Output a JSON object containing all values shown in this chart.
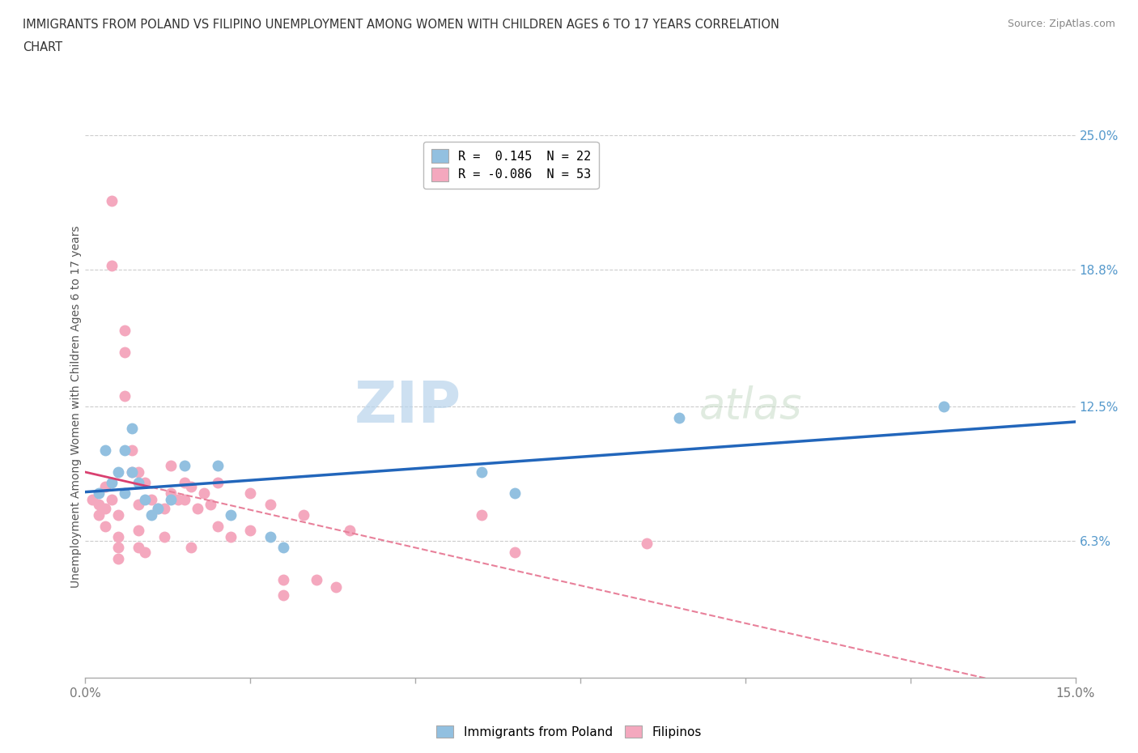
{
  "title_line1": "IMMIGRANTS FROM POLAND VS FILIPINO UNEMPLOYMENT AMONG WOMEN WITH CHILDREN AGES 6 TO 17 YEARS CORRELATION",
  "title_line2": "CHART",
  "source": "Source: ZipAtlas.com",
  "ylabel": "Unemployment Among Women with Children Ages 6 to 17 years",
  "xlim": [
    0.0,
    0.15
  ],
  "ylim": [
    0.0,
    0.25
  ],
  "xtick_positions": [
    0.0,
    0.025,
    0.05,
    0.075,
    0.1,
    0.125,
    0.15
  ],
  "xticklabels": [
    "0.0%",
    "",
    "",
    "",
    "",
    "",
    "15.0%"
  ],
  "ytick_positions": [
    0.0,
    0.063,
    0.125,
    0.188,
    0.25
  ],
  "ytick_labels": [
    "",
    "6.3%",
    "12.5%",
    "18.8%",
    "25.0%"
  ],
  "poland_R": "0.145",
  "poland_N": "22",
  "filipino_R": "-0.086",
  "filipino_N": "53",
  "poland_color": "#92c0e0",
  "filipino_color": "#f4a8be",
  "poland_line_color": "#2266bb",
  "filipino_line_color_solid": "#d94070",
  "filipino_line_color_dash": "#e8809a",
  "background_color": "#ffffff",
  "grid_color": "#cccccc",
  "watermark_zip": "ZIP",
  "watermark_atlas": "atlas",
  "poland_x": [
    0.002,
    0.003,
    0.004,
    0.005,
    0.006,
    0.006,
    0.007,
    0.007,
    0.008,
    0.009,
    0.01,
    0.011,
    0.013,
    0.015,
    0.02,
    0.022,
    0.028,
    0.03,
    0.06,
    0.065,
    0.09,
    0.13
  ],
  "poland_y": [
    0.085,
    0.105,
    0.09,
    0.095,
    0.105,
    0.085,
    0.115,
    0.095,
    0.09,
    0.082,
    0.075,
    0.078,
    0.082,
    0.098,
    0.098,
    0.075,
    0.065,
    0.06,
    0.095,
    0.085,
    0.12,
    0.125
  ],
  "filipino_x": [
    0.001,
    0.002,
    0.002,
    0.003,
    0.003,
    0.003,
    0.004,
    0.004,
    0.004,
    0.005,
    0.005,
    0.005,
    0.005,
    0.006,
    0.006,
    0.006,
    0.007,
    0.007,
    0.008,
    0.008,
    0.008,
    0.008,
    0.009,
    0.009,
    0.01,
    0.011,
    0.012,
    0.012,
    0.013,
    0.013,
    0.014,
    0.015,
    0.015,
    0.016,
    0.016,
    0.017,
    0.018,
    0.019,
    0.02,
    0.02,
    0.022,
    0.025,
    0.025,
    0.028,
    0.03,
    0.03,
    0.033,
    0.035,
    0.038,
    0.04,
    0.06,
    0.065,
    0.085
  ],
  "filipino_y": [
    0.082,
    0.08,
    0.075,
    0.088,
    0.078,
    0.07,
    0.22,
    0.19,
    0.082,
    0.075,
    0.065,
    0.06,
    0.055,
    0.16,
    0.15,
    0.13,
    0.105,
    0.095,
    0.095,
    0.08,
    0.068,
    0.06,
    0.09,
    0.058,
    0.082,
    0.078,
    0.078,
    0.065,
    0.098,
    0.085,
    0.082,
    0.09,
    0.082,
    0.088,
    0.06,
    0.078,
    0.085,
    0.08,
    0.09,
    0.07,
    0.065,
    0.085,
    0.068,
    0.08,
    0.045,
    0.038,
    0.075,
    0.045,
    0.042,
    0.068,
    0.075,
    0.058,
    0.062
  ]
}
